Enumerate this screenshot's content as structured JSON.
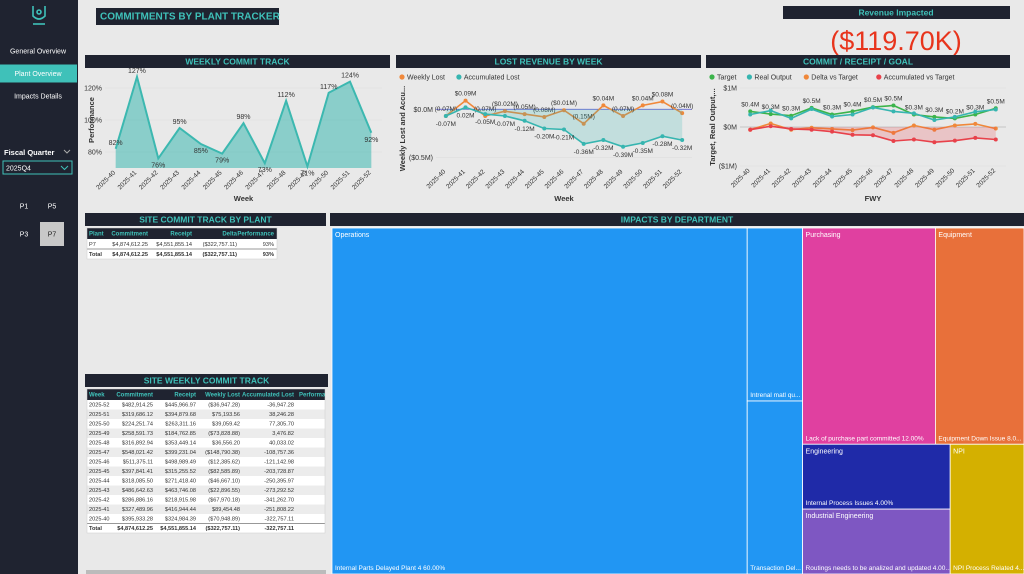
{
  "sidebar": {
    "nav": [
      "General Overview",
      "Plant Overview",
      "Impacts Details"
    ],
    "active": 1,
    "filter": {
      "label": "Fiscal Quarter",
      "value": "2025Q4"
    },
    "plants": [
      "P1",
      "P5",
      "P3",
      "P7"
    ],
    "selected_plant": 3
  },
  "header": {
    "title": "COMMITMENTS BY PLANT TRACKER"
  },
  "kpi": {
    "title": "Revenue Impacted",
    "value": "($119.70K)"
  },
  "chart_data": [
    {
      "type": "area",
      "title": "WEEKLY COMMIT TRACK",
      "categories": [
        "2025-40",
        "2025-41",
        "2025-42",
        "2025-43",
        "2025-44",
        "2025-45",
        "2025-46",
        "2025-47",
        "2025-48",
        "2025-49",
        "2025-50",
        "2025-51",
        "2025-52"
      ],
      "values": [
        82,
        127,
        76,
        95,
        85,
        79,
        98,
        73,
        112,
        71,
        117,
        124,
        92
      ],
      "value_labels": [
        "82%",
        "127%",
        "76%",
        "95%",
        "85%",
        "79%",
        "98%",
        "73%",
        "112%",
        "71%",
        "117%",
        "124%",
        "92%"
      ],
      "color": "#3cb8b0",
      "x_label": "Week",
      "y_label": "Performance",
      "ylim": [
        70,
        130
      ],
      "yticks": [
        {
          "value": 80,
          "label": "80%"
        },
        {
          "value": 100,
          "label": "100%"
        },
        {
          "value": 120,
          "label": "120%"
        }
      ]
    },
    {
      "type": "line",
      "title": "LOST REVENUE BY WEEK",
      "categories": [
        "2025-40",
        "2025-41",
        "2025-42",
        "2025-43",
        "2025-44",
        "2025-45",
        "2025-46",
        "2025-47",
        "2025-48",
        "2025-49",
        "2025-50",
        "2025-51",
        "2025-52"
      ],
      "series": [
        {
          "name": "Weekly Lost",
          "color": "#f0883a",
          "values": [
            -0.07,
            0.09,
            -0.07,
            -0.02,
            -0.05,
            -0.08,
            -0.01,
            -0.15,
            0.04,
            -0.07,
            0.04,
            0.08,
            -0.04
          ],
          "value_labels": [
            "(0.07M)",
            "$0.09M",
            "(0.07M)",
            "($0.02M)",
            "(0.05M)",
            "(0.08M)",
            "($0.01M)",
            "(0.15M)",
            "$0.04M",
            "(0.07M)",
            "$0.04M",
            "$0.08M",
            "(0.04M)"
          ]
        },
        {
          "name": "Accumulated Lost",
          "color": "#36b5b0",
          "values": [
            -0.07,
            0.02,
            -0.05,
            -0.07,
            -0.12,
            -0.2,
            -0.21,
            -0.36,
            -0.32,
            -0.39,
            -0.35,
            -0.28,
            -0.32
          ],
          "value_labels": [
            "-0.07M",
            "0.02M",
            "-0.05M",
            "-0.07M",
            "-0.12M",
            "-0.20M",
            "-0.21M",
            "-0.36M",
            "-0.32M",
            "-0.39M",
            "-0.35M",
            "-0.28M",
            "-0.32M"
          ]
        }
      ],
      "x_label": "Week",
      "y_label": "Weekly Lost and Accu...",
      "ylim": [
        -0.6,
        0.2
      ],
      "yticks": [
        {
          "value": 0,
          "label": "$0.0M"
        },
        {
          "value": -0.5,
          "label": "($0.5M)"
        }
      ]
    },
    {
      "type": "line",
      "title": "COMMIT / RECEIPT / GOAL",
      "categories": [
        "2025-40",
        "2025-41",
        "2025-42",
        "2025-43",
        "2025-44",
        "2025-45",
        "2025-46",
        "2025-47",
        "2025-48",
        "2025-49",
        "2025-50",
        "2025-51",
        "2025-52"
      ],
      "series": [
        {
          "name": "Target",
          "color": "#3cb44b",
          "values": [
            0.4,
            0.33,
            0.29,
            0.49,
            0.32,
            0.4,
            0.51,
            0.55,
            0.32,
            0.26,
            0.22,
            0.32,
            0.48
          ],
          "value_labels": [
            "$0.4M",
            "$0.3M",
            "$0.3M",
            "$0.5M",
            "$0.3M",
            "$0.4M",
            "$0.5M",
            "$0.5M",
            "$0.3M",
            "$0.3M",
            "$0.2M",
            "$0.3M",
            "$0.5M"
          ]
        },
        {
          "name": "Real Output",
          "color": "#36b5b0",
          "values": [
            0.32,
            0.42,
            0.22,
            0.46,
            0.27,
            0.32,
            0.5,
            0.4,
            0.35,
            0.18,
            0.26,
            0.39,
            0.45
          ]
        },
        {
          "name": "Delta vs Target",
          "color": "#f0883a",
          "values": [
            -0.07,
            0.09,
            -0.07,
            -0.02,
            -0.05,
            -0.08,
            -0.01,
            -0.15,
            0.04,
            -0.07,
            0.04,
            0.08,
            -0.04
          ]
        },
        {
          "name": "Accumulated vs Target",
          "color": "#e8414a",
          "values": [
            -0.07,
            0.02,
            -0.05,
            -0.07,
            -0.12,
            -0.2,
            -0.21,
            -0.36,
            -0.32,
            -0.39,
            -0.35,
            -0.28,
            -0.32
          ]
        }
      ],
      "x_label": "FWY",
      "y_label": "Target, Real Output,...",
      "ylim": [
        -1,
        1
      ],
      "yticks": [
        {
          "value": 1,
          "label": "$1M"
        },
        {
          "value": 0,
          "label": "$0M"
        },
        {
          "value": -1,
          "label": "($1M)"
        }
      ]
    }
  ],
  "plant_table": {
    "title": "SITE COMMIT TRACK BY PLANT",
    "columns": [
      "Plant",
      "Commitment",
      "Receipt",
      "Delta",
      "Performance"
    ],
    "rows": [
      [
        "P7",
        "$4,874,612.25",
        "$4,551,855.14",
        "($322,757.11)",
        "93%"
      ]
    ],
    "total": [
      "Total",
      "$4,874,612.25",
      "$4,551,855.14",
      "($322,757.11)",
      "93%"
    ]
  },
  "weekly_table": {
    "title": "SITE WEEKLY COMMIT TRACK",
    "columns": [
      "Week",
      "Commitment",
      "Receipt",
      "Weekly Lost",
      "Accumulated Lost",
      "Performan"
    ],
    "rows": [
      [
        "2025-52",
        "$482,914.25",
        "$445,966.97",
        "($36,947.28)",
        "-36,947.28"
      ],
      [
        "2025-51",
        "$319,686.12",
        "$394,879.68",
        "$75,193.56",
        "38,246.28"
      ],
      [
        "2025-50",
        "$224,251.74",
        "$263,311.16",
        "$39,059.42",
        "77,305.70"
      ],
      [
        "2025-49",
        "$258,591.73",
        "$184,762.85",
        "($73,828.88)",
        "3,476.82"
      ],
      [
        "2025-48",
        "$316,892.94",
        "$353,449.14",
        "$36,556.20",
        "40,033.02"
      ],
      [
        "2025-47",
        "$548,021.42",
        "$399,231.04",
        "($148,790.38)",
        "-108,757.36"
      ],
      [
        "2025-46",
        "$511,375.11",
        "$498,989.49",
        "($12,385.62)",
        "-121,142.98"
      ],
      [
        "2025-45",
        "$397,841.41",
        "$315,255.52",
        "($82,585.89)",
        "-203,728.87"
      ],
      [
        "2025-44",
        "$318,085.50",
        "$271,418.40",
        "($46,667.10)",
        "-250,395.97"
      ],
      [
        "2025-43",
        "$486,642.63",
        "$463,746.08",
        "($22,896.55)",
        "-273,292.52"
      ],
      [
        "2025-42",
        "$286,886.16",
        "$218,915.98",
        "($67,970.18)",
        "-341,262.70"
      ],
      [
        "2025-41",
        "$327,489.96",
        "$416,944.44",
        "$89,454.48",
        "-251,808.22"
      ],
      [
        "2025-40",
        "$395,933.28",
        "$324,984.39",
        "($70,948.89)",
        "-322,757.11"
      ]
    ],
    "total": [
      "Total",
      "$4,874,612.25",
      "$4,551,855.14",
      "($322,757.11)",
      "-322,757.11"
    ]
  },
  "treemap": {
    "title": "IMPACTS BY DEPARTMENT",
    "departments": [
      {
        "name": "Operations",
        "color": "#2196f3",
        "items": [
          {
            "label": "Internal Parts Delayed Plant 4 60.00%",
            "value": 60
          },
          {
            "label": "Intrenal matl qu...",
            "value": 4
          },
          {
            "label": "Transaction Del...",
            "value": 4
          }
        ]
      },
      {
        "name": "Purchasing",
        "color": "#e040a0",
        "items": [
          {
            "label": "Lack of purchase part committed 12.00%",
            "value": 12
          }
        ]
      },
      {
        "name": "Equipment",
        "color": "#e8703a",
        "items": [
          {
            "label": "Equipment Down Issue 8.0...",
            "value": 8
          }
        ]
      },
      {
        "name": "Engineering",
        "color": "#1f2aa8",
        "items": [
          {
            "label": "Internal Process Issues 4.00%",
            "value": 4
          }
        ]
      },
      {
        "name": "Industrial Engineering",
        "color": "#7e57c2",
        "items": [
          {
            "label": "Routings needs to be analized and updated 4.00...",
            "value": 4
          }
        ]
      },
      {
        "name": "NPI",
        "color": "#d4b000",
        "items": [
          {
            "label": "NPI Process Related 4...",
            "value": 4
          }
        ]
      }
    ]
  }
}
